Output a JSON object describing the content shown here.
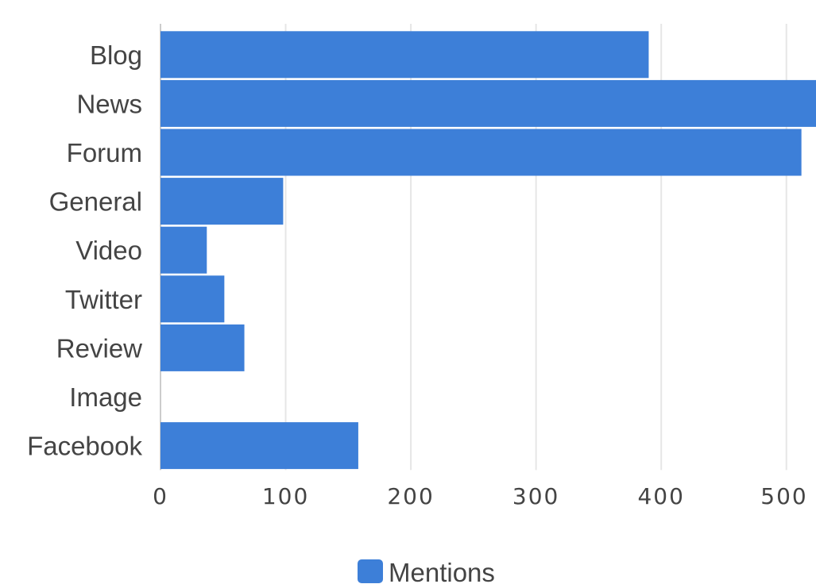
{
  "chart_data": {
    "type": "bar",
    "orientation": "horizontal",
    "categories": [
      "Blog",
      "News",
      "Forum",
      "General",
      "Video",
      "Twitter",
      "Review",
      "Image",
      "Facebook"
    ],
    "series": [
      {
        "name": "Mentions",
        "values": [
          390,
          525,
          512,
          98,
          37,
          51,
          67,
          0,
          158
        ]
      }
    ],
    "x_ticks": [
      "0",
      "100",
      "200",
      "300",
      "400",
      "500"
    ],
    "xlim": [
      0,
      523
    ],
    "grid": true,
    "legend_position": "bottom",
    "colors": {
      "bar": "#3d7fd8",
      "grid": "#e6e6e6",
      "text": "#444444"
    }
  }
}
